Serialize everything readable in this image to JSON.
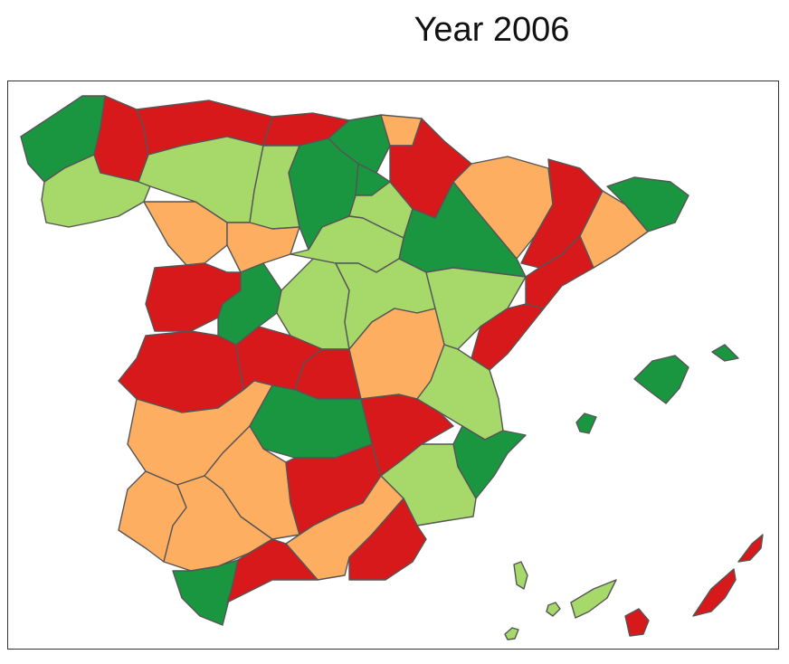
{
  "title": "Year 2006",
  "palette": {
    "dark_green": "#1a9641",
    "light_green": "#a6d96a",
    "orange": "#fdae61",
    "red": "#d7191c",
    "border": "#555555"
  },
  "regions": [
    {
      "name": "galicia-coast",
      "class": "dark_green"
    },
    {
      "name": "galicia-south",
      "class": "light_green"
    },
    {
      "name": "lugo",
      "class": "red"
    },
    {
      "name": "asturias",
      "class": "red"
    },
    {
      "name": "cantabria",
      "class": "red"
    },
    {
      "name": "basque-1",
      "class": "dark_green"
    },
    {
      "name": "basque-2",
      "class": "orange"
    },
    {
      "name": "navarra",
      "class": "red"
    },
    {
      "name": "leon",
      "class": "light_green"
    },
    {
      "name": "palencia",
      "class": "light_green"
    },
    {
      "name": "burgos",
      "class": "dark_green"
    },
    {
      "name": "la-rioja",
      "class": "dark_green"
    },
    {
      "name": "zamora",
      "class": "orange"
    },
    {
      "name": "valladolid",
      "class": "orange"
    },
    {
      "name": "soria",
      "class": "light_green"
    },
    {
      "name": "huesca",
      "class": "orange"
    },
    {
      "name": "lleida",
      "class": "red"
    },
    {
      "name": "girona",
      "class": "dark_green"
    },
    {
      "name": "barcelona",
      "class": "orange"
    },
    {
      "name": "zaragoza",
      "class": "dark_green"
    },
    {
      "name": "segovia",
      "class": "light_green"
    },
    {
      "name": "salamanca",
      "class": "red"
    },
    {
      "name": "avila",
      "class": "dark_green"
    },
    {
      "name": "madrid",
      "class": "light_green"
    },
    {
      "name": "guadalajara",
      "class": "light_green"
    },
    {
      "name": "teruel",
      "class": "light_green"
    },
    {
      "name": "tarragona",
      "class": "red"
    },
    {
      "name": "castellon",
      "class": "red"
    },
    {
      "name": "caceres",
      "class": "red"
    },
    {
      "name": "toledo",
      "class": "red"
    },
    {
      "name": "toledo-east",
      "class": "red"
    },
    {
      "name": "cuenca",
      "class": "orange"
    },
    {
      "name": "valencia",
      "class": "light_green"
    },
    {
      "name": "badajoz",
      "class": "orange"
    },
    {
      "name": "ciudad-real",
      "class": "dark_green"
    },
    {
      "name": "albacete",
      "class": "red"
    },
    {
      "name": "alicante",
      "class": "dark_green"
    },
    {
      "name": "huelva",
      "class": "orange"
    },
    {
      "name": "sevilla",
      "class": "orange"
    },
    {
      "name": "cordoba",
      "class": "orange"
    },
    {
      "name": "jaen",
      "class": "red"
    },
    {
      "name": "murcia",
      "class": "light_green"
    },
    {
      "name": "granada",
      "class": "orange"
    },
    {
      "name": "almeria",
      "class": "red"
    },
    {
      "name": "cadiz",
      "class": "dark_green"
    },
    {
      "name": "malaga",
      "class": "red"
    },
    {
      "name": "mallorca",
      "class": "dark_green"
    },
    {
      "name": "menorca",
      "class": "dark_green"
    },
    {
      "name": "ibiza",
      "class": "dark_green"
    },
    {
      "name": "la-palma",
      "class": "light_green"
    },
    {
      "name": "la-gomera",
      "class": "light_green"
    },
    {
      "name": "tenerife",
      "class": "light_green"
    },
    {
      "name": "el-hierro",
      "class": "light_green"
    },
    {
      "name": "gran-canaria",
      "class": "red"
    },
    {
      "name": "fuerteventura",
      "class": "red"
    },
    {
      "name": "lanzarote",
      "class": "red"
    }
  ]
}
